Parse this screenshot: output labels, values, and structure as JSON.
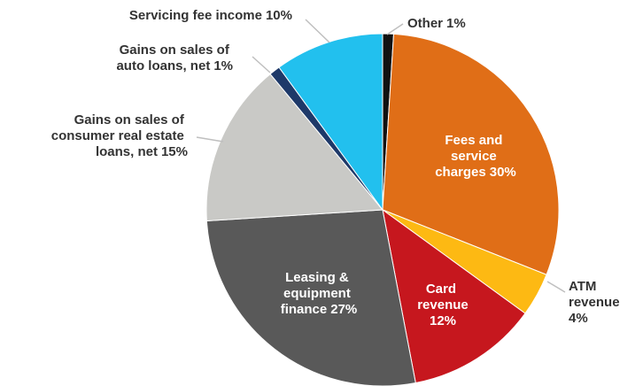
{
  "chart_data": {
    "type": "pie",
    "categories": [
      "Other",
      "Fees and service charges",
      "ATM revenue",
      "Card revenue",
      "Leasing & equipment finance",
      "Gains on sales of consumer real estate loans, net",
      "Gains on sales of auto loans, net",
      "Servicing fee income"
    ],
    "values": [
      1,
      30,
      4,
      12,
      27,
      15,
      1,
      10
    ],
    "value_labels": [
      "1%",
      "30%",
      "4%",
      "12%",
      "27%",
      "15%",
      "1%",
      "10%"
    ],
    "colors": [
      "#111111",
      "#e06e17",
      "#fdb913",
      "#c6171e",
      "#595959",
      "#c9c9c6",
      "#1e3969",
      "#22c0ee"
    ]
  }
}
